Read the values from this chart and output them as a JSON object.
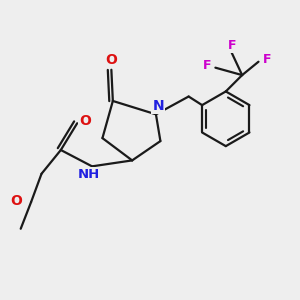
{
  "background_color": "#eeeeee",
  "bond_color": "#1a1a1a",
  "nitrogen_color": "#2020e0",
  "oxygen_color": "#dd1111",
  "fluorine_color": "#cc00cc",
  "line_width": 1.6,
  "figsize": [
    3.0,
    3.0
  ],
  "dpi": 100,
  "xlim": [
    0,
    10
  ],
  "ylim": [
    0,
    10
  ]
}
